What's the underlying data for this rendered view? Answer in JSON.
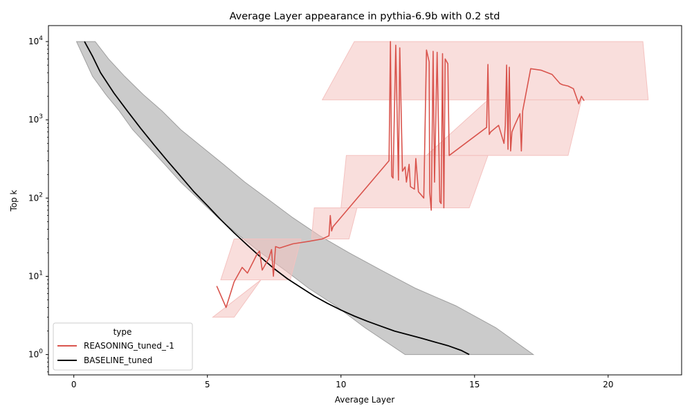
{
  "chart_data": {
    "type": "line",
    "title": "Average Layer appearance in pythia-6.9b with 0.2 std",
    "xlabel": "Average Layer",
    "ylabel": "Top k",
    "xlim": [
      -0.95,
      22.75
    ],
    "ylim": [
      0.55,
      16000
    ],
    "yscale": "log",
    "x_ticks": [
      0,
      5,
      10,
      15,
      20
    ],
    "x_tick_labels": [
      "0",
      "5",
      "10",
      "15",
      "20"
    ],
    "y_ticks": [
      1,
      10,
      100,
      1000,
      10000
    ],
    "y_tick_labels": [
      "10^0",
      "10^1",
      "10^2",
      "10^3",
      "10^4"
    ],
    "grid": false,
    "legend": {
      "title": "type",
      "placement": "lower-left",
      "entries": [
        "REASONING_tuned_-1",
        "BASELINE_tuned"
      ]
    },
    "series": [
      {
        "name": "REASONING_tuned_-1",
        "color": "#d9544d",
        "band_color": "#f4c2c0",
        "points": [
          [
            5.35,
            7.5
          ],
          [
            5.7,
            4.0
          ],
          [
            6.0,
            8.5
          ],
          [
            6.3,
            13
          ],
          [
            6.5,
            11
          ],
          [
            6.7,
            15
          ],
          [
            6.85,
            19
          ],
          [
            6.95,
            21
          ],
          [
            7.05,
            12
          ],
          [
            7.3,
            17
          ],
          [
            7.4,
            22
          ],
          [
            7.47,
            10
          ],
          [
            7.55,
            24
          ],
          [
            7.7,
            23
          ],
          [
            8.2,
            26
          ],
          [
            8.8,
            28
          ],
          [
            9.3,
            30
          ],
          [
            9.55,
            33
          ],
          [
            9.6,
            60
          ],
          [
            9.65,
            38
          ],
          [
            9.7,
            43
          ],
          [
            11.8,
            300
          ],
          [
            11.85,
            10000
          ],
          [
            11.9,
            190
          ],
          [
            11.95,
            180
          ],
          [
            12.05,
            9000
          ],
          [
            12.15,
            170
          ],
          [
            12.2,
            8300
          ],
          [
            12.3,
            220
          ],
          [
            12.4,
            250
          ],
          [
            12.45,
            160
          ],
          [
            12.55,
            270
          ],
          [
            12.6,
            140
          ],
          [
            12.75,
            130
          ],
          [
            12.8,
            320
          ],
          [
            12.9,
            120
          ],
          [
            13.0,
            110
          ],
          [
            13.1,
            100
          ],
          [
            13.2,
            7800
          ],
          [
            13.3,
            5500
          ],
          [
            13.32,
            120
          ],
          [
            13.38,
            70
          ],
          [
            13.45,
            7500
          ],
          [
            13.5,
            160
          ],
          [
            13.6,
            7300
          ],
          [
            13.7,
            90
          ],
          [
            13.75,
            85
          ],
          [
            13.8,
            7000
          ],
          [
            13.85,
            75
          ],
          [
            13.9,
            6000
          ],
          [
            14.0,
            5200
          ],
          [
            14.05,
            350
          ],
          [
            15.45,
            800
          ],
          [
            15.5,
            5100
          ],
          [
            15.55,
            650
          ],
          [
            15.6,
            700
          ],
          [
            15.9,
            850
          ],
          [
            16.1,
            500
          ],
          [
            16.15,
            850
          ],
          [
            16.2,
            5000
          ],
          [
            16.25,
            420
          ],
          [
            16.3,
            4700
          ],
          [
            16.35,
            400
          ],
          [
            16.4,
            700
          ],
          [
            16.5,
            850
          ],
          [
            16.7,
            1200
          ],
          [
            16.75,
            400
          ],
          [
            16.8,
            1300
          ],
          [
            17.1,
            4500
          ],
          [
            17.5,
            4300
          ],
          [
            17.9,
            3800
          ],
          [
            18.2,
            2900
          ],
          [
            18.3,
            2800
          ],
          [
            18.5,
            2700
          ],
          [
            18.7,
            2500
          ],
          [
            18.9,
            1600
          ],
          [
            19.0,
            2000
          ],
          [
            19.1,
            1750
          ]
        ],
        "bands": [
          {
            "y": [
              3.0,
              9.0
            ],
            "x_lo": [
              5.2,
              7.0
            ],
            "x_hi": [
              6.0,
              7.0
            ]
          },
          {
            "y": [
              9.0,
              30
            ],
            "x_lo": [
              5.5,
              6.0
            ],
            "x_hi": [
              8.1,
              8.5
            ]
          },
          {
            "y": [
              30,
              75
            ],
            "x_lo": [
              8.9,
              9.0
            ],
            "x_hi": [
              10.3,
              10.6
            ]
          },
          {
            "y": [
              75,
              350
            ],
            "x_lo": [
              10.0,
              10.2
            ],
            "x_hi": [
              14.8,
              15.5
            ]
          },
          {
            "y": [
              350,
              1800
            ],
            "x_lo": [
              13.2,
              15.5
            ],
            "x_hi": [
              18.5,
              19.0
            ]
          },
          {
            "y": [
              1800,
              10000
            ],
            "x_lo": [
              9.3,
              10.5
            ],
            "x_hi": [
              21.5,
              21.3
            ]
          }
        ]
      },
      {
        "name": "BASELINE_tuned",
        "color": "#000000",
        "band_color": "#cbcbcb",
        "points": [
          [
            0.4,
            10000
          ],
          [
            0.7,
            6500
          ],
          [
            1.0,
            4000
          ],
          [
            1.5,
            2200
          ],
          [
            2.0,
            1300
          ],
          [
            2.5,
            780
          ],
          [
            3.0,
            480
          ],
          [
            3.5,
            300
          ],
          [
            4.0,
            190
          ],
          [
            4.5,
            120
          ],
          [
            5.0,
            80
          ],
          [
            5.5,
            53
          ],
          [
            6.0,
            36
          ],
          [
            6.5,
            25
          ],
          [
            7.0,
            17.5
          ],
          [
            7.5,
            12.5
          ],
          [
            8.0,
            9.3
          ],
          [
            8.5,
            7.2
          ],
          [
            9.0,
            5.6
          ],
          [
            9.5,
            4.5
          ],
          [
            10.0,
            3.7
          ],
          [
            10.5,
            3.1
          ],
          [
            11.0,
            2.65
          ],
          [
            11.5,
            2.3
          ],
          [
            12.0,
            2.0
          ],
          [
            12.5,
            1.8
          ],
          [
            13.0,
            1.62
          ],
          [
            13.5,
            1.45
          ],
          [
            14.0,
            1.3
          ],
          [
            14.5,
            1.13
          ],
          [
            14.8,
            1.0
          ]
        ],
        "band_lower_x": [
          0.1,
          0.4,
          0.7,
          1.2,
          1.7,
          2.2,
          2.8,
          3.4,
          4.0,
          4.7,
          5.4,
          6.2,
          7.0,
          7.9,
          8.8,
          9.8,
          10.9,
          12.4
        ],
        "band_upper_x": [
          0.8,
          1.3,
          1.9,
          2.6,
          3.3,
          4.0,
          4.8,
          5.6,
          6.4,
          7.3,
          8.2,
          9.2,
          10.3,
          11.5,
          12.8,
          14.3,
          15.8,
          17.2
        ],
        "band_y": [
          10000,
          6000,
          3600,
          2100,
          1300,
          750,
          450,
          270,
          160,
          95,
          56,
          33,
          20,
          12,
          7,
          4.2,
          2.2,
          1.0
        ]
      }
    ]
  }
}
